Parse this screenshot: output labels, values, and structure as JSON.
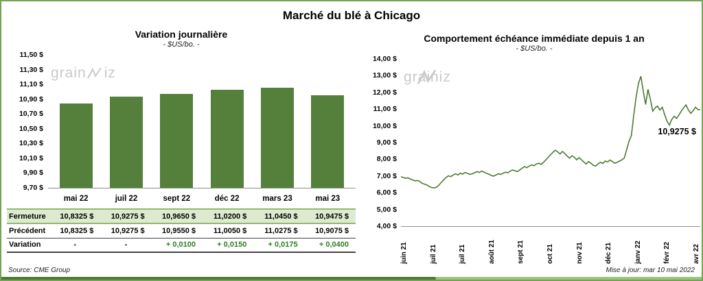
{
  "page": {
    "title": "Marché du blé à Chicago"
  },
  "watermark": {
    "pre": "grain",
    "post": "iz"
  },
  "footer": {
    "source": "Source: CME Group",
    "updated": "Mise à jour: mar 10 mai 2022"
  },
  "colors": {
    "bar": "#54803c",
    "line": "#4c7a31",
    "fermeture_row_bg": "#dcead0",
    "fermeture_row_border": "#8fb971",
    "frame_border": "#74a351",
    "positive_variation": "#2e7d1e",
    "watermark": "#c9c9c9"
  },
  "table": {
    "rows": [
      {
        "label": "Fermeture",
        "style": "fermeture",
        "values": [
          "10,8325 $",
          "10,9275 $",
          "10,9650 $",
          "11,0200 $",
          "11,0450 $",
          "10,9475 $"
        ]
      },
      {
        "label": "Précédent",
        "style": "precedent",
        "values": [
          "10,8325 $",
          "10,9275 $",
          "10,9550 $",
          "11,0050 $",
          "11,0275 $",
          "10,9075 $"
        ]
      },
      {
        "label": "Variation",
        "style": "variation",
        "values": [
          "-",
          "-",
          "+ 0,0100",
          "+ 0,0150",
          "+ 0,0175",
          "+ 0,0400"
        ]
      }
    ]
  },
  "chart_data": [
    {
      "type": "bar",
      "title": "Variation journalière",
      "subtitle": "- $US/bo. -",
      "categories": [
        "mai 22",
        "juil 22",
        "sept 22",
        "déc 22",
        "mars 23",
        "mai 23"
      ],
      "values": [
        10.8325,
        10.9275,
        10.965,
        11.02,
        11.045,
        10.9475
      ],
      "ylim": [
        9.7,
        11.5
      ],
      "ytick_labels": [
        "11,50 $",
        "11,30 $",
        "11,10 $",
        "10,90 $",
        "10,70 $",
        "10,50 $",
        "10,30 $",
        "10,10 $",
        "9,90 $",
        "9,70 $"
      ],
      "grid": false,
      "legend": "none",
      "bar_color": "#54803c"
    },
    {
      "type": "line",
      "title": "Comportement échéance immédiate depuis 1 an",
      "subtitle": "- $US/bo. -",
      "x_tick_labels": [
        "juin 21",
        "juil 21",
        "juil 21",
        "août 21",
        "sept 21",
        "oct 21",
        "nov 21",
        "déc 21",
        "janv 22",
        "févr 22",
        "avr 22"
      ],
      "ylim": [
        4.0,
        14.0
      ],
      "ytick_labels": [
        "14,00 $",
        "13,00 $",
        "12,00 $",
        "11,00 $",
        "10,00 $",
        "9,00 $",
        "8,00 $",
        "7,00 $",
        "6,00 $",
        "5,00 $",
        "4,00 $"
      ],
      "grid": false,
      "legend": "none",
      "line_color": "#4c7a31",
      "last_value_label": "10,9275 $",
      "values": [
        6.95,
        6.9,
        6.85,
        6.88,
        6.8,
        6.75,
        6.7,
        6.72,
        6.65,
        6.55,
        6.5,
        6.45,
        6.35,
        6.3,
        6.28,
        6.32,
        6.45,
        6.6,
        6.75,
        6.9,
        7.0,
        6.95,
        7.05,
        7.12,
        7.05,
        7.15,
        7.1,
        7.2,
        7.15,
        7.08,
        7.12,
        7.18,
        7.25,
        7.2,
        7.28,
        7.22,
        7.15,
        7.1,
        7.02,
        6.98,
        7.05,
        7.12,
        7.08,
        7.15,
        7.22,
        7.18,
        7.28,
        7.35,
        7.3,
        7.25,
        7.35,
        7.45,
        7.55,
        7.48,
        7.58,
        7.65,
        7.6,
        7.7,
        7.75,
        7.68,
        7.8,
        7.95,
        8.1,
        8.25,
        8.4,
        8.52,
        8.42,
        8.3,
        8.45,
        8.32,
        8.18,
        8.05,
        8.2,
        8.1,
        7.95,
        8.08,
        7.95,
        7.82,
        7.7,
        7.85,
        7.75,
        7.62,
        7.58,
        7.72,
        7.8,
        7.74,
        7.88,
        7.82,
        7.94,
        7.85,
        7.75,
        7.8,
        7.88,
        7.95,
        8.05,
        8.55,
        9.05,
        9.4,
        10.6,
        11.7,
        12.5,
        12.93,
        12.05,
        11.25,
        12.15,
        11.55,
        10.85,
        11.05,
        11.15,
        10.92,
        11.08,
        10.65,
        10.25,
        10.02,
        10.35,
        10.55,
        10.42,
        10.62,
        10.85,
        11.05,
        11.22,
        10.92,
        10.72,
        10.88,
        11.08,
        10.95,
        10.9275
      ]
    }
  ]
}
